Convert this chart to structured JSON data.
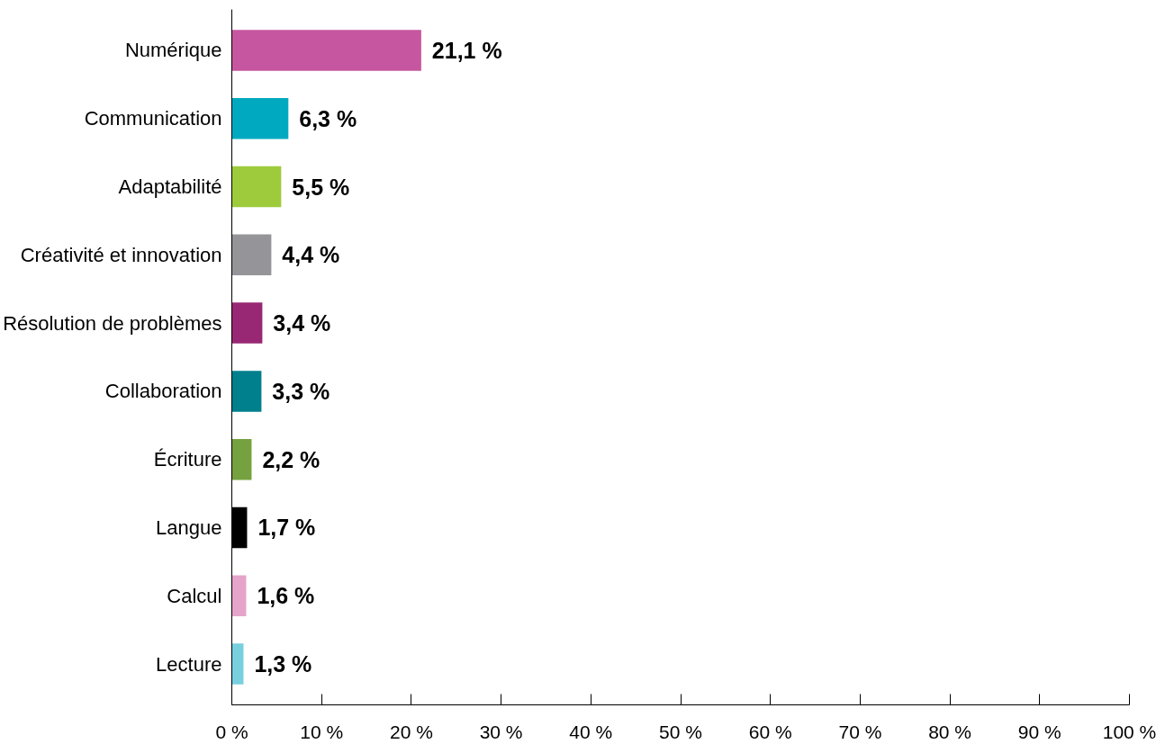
{
  "chart_data": {
    "type": "bar",
    "orientation": "horizontal",
    "categories": [
      "Numérique",
      "Communication",
      "Adaptabilité",
      "Créativité et innovation",
      "Résolution de problèmes",
      "Collaboration",
      "Écriture",
      "Langue",
      "Calcul",
      "Lecture"
    ],
    "values": [
      21.1,
      6.3,
      5.5,
      4.4,
      3.4,
      3.3,
      2.2,
      1.7,
      1.6,
      1.3
    ],
    "colors": [
      "#c6569f",
      "#00a9bf",
      "#9dcb3c",
      "#959599",
      "#982873",
      "#007f8c",
      "#76a140",
      "#000000",
      "#e5a4c9",
      "#78d0df"
    ],
    "value_labels": [
      "21,1 %",
      "6,3 %",
      "5,5 %",
      "4,4 %",
      "3,4 %",
      "3,3 %",
      "2,2 %",
      "1,7 %",
      "1,6 %",
      "1,3 %"
    ],
    "xlim": [
      0,
      100
    ],
    "xticks": [
      {
        "value": 0,
        "label": "0 %"
      },
      {
        "value": 10,
        "label": "10 %"
      },
      {
        "value": 20,
        "label": "20 %"
      },
      {
        "value": 30,
        "label": "30 %"
      },
      {
        "value": 40,
        "label": "40 %"
      },
      {
        "value": 50,
        "label": "50 %"
      },
      {
        "value": 60,
        "label": "60 %"
      },
      {
        "value": 70,
        "label": "70 %"
      },
      {
        "value": 80,
        "label": "80 %"
      },
      {
        "value": 90,
        "label": "90 %"
      },
      {
        "value": 100,
        "label": "100 %"
      }
    ],
    "grid": false
  }
}
